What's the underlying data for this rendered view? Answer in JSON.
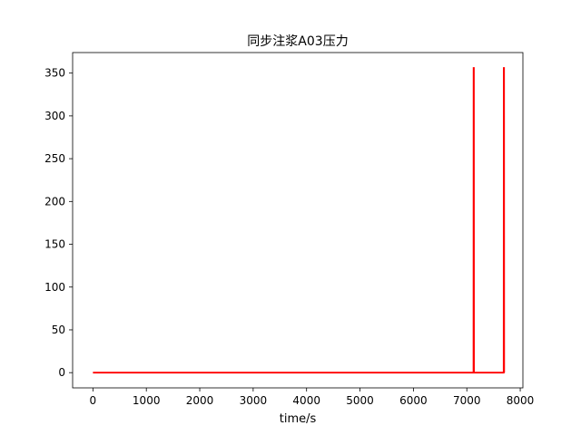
{
  "chart_data": {
    "type": "line",
    "title": "同步注浆A03压力",
    "xlabel": "time/s",
    "ylabel": "",
    "xlim": [
      -380,
      8050
    ],
    "ylim": [
      -17.8,
      374
    ],
    "xticks": [
      0,
      1000,
      2000,
      3000,
      4000,
      5000,
      6000,
      7000,
      8000
    ],
    "yticks": [
      0,
      50,
      100,
      150,
      200,
      250,
      300,
      350
    ],
    "grid": false,
    "series": [
      {
        "color": "#ff0000",
        "x": [
          0,
          7125,
          7127,
          7132,
          7134,
          7690,
          7692,
          7697,
          7699
        ],
        "y": [
          0,
          0,
          356,
          356,
          0,
          0,
          356,
          356,
          0
        ]
      }
    ]
  }
}
